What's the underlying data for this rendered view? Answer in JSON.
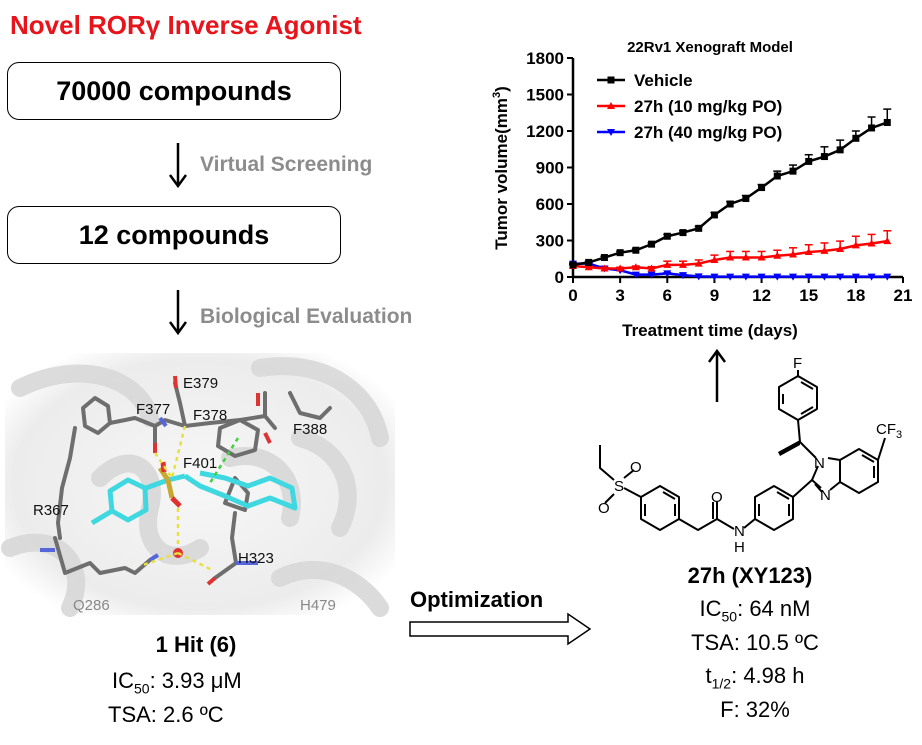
{
  "title": "Novel RORγ Inverse Agonist",
  "workflow": {
    "box1": "70000 compounds",
    "step1": "Virtual Screening",
    "box2": "12 compounds",
    "step2": "Biological Evaluation"
  },
  "binding_site": {
    "residues": [
      "E379",
      "F377",
      "F378",
      "F388",
      "F401",
      "R367",
      "H323",
      "Q286",
      "H479"
    ]
  },
  "hit": {
    "name": "1 Hit (6)",
    "ic50_label": "IC",
    "ic50_sub": "50",
    "ic50_value": ": 3.93 μM",
    "tsa": "TSA: 2.6 ºC"
  },
  "optimization_label": "Optimization",
  "lead": {
    "name": "27h (XY123)",
    "ic50_label": "IC",
    "ic50_sub": "50",
    "ic50_value": ":  64 nM",
    "tsa": "TSA: 10.5 ºC",
    "t_label": "t",
    "t_sub": "1/2",
    "t_value": ":  4.98 h",
    "f": "F:  32%"
  },
  "molecule": {
    "atoms": {
      "F": "F",
      "CF3": "CF",
      "CF3_sub": "3",
      "N1": "N",
      "N3": "N",
      "S": "S",
      "O1": "O",
      "O2": "O",
      "O3": "O",
      "NH_N": "N",
      "NH_H": "H"
    }
  },
  "chart_data": {
    "type": "line",
    "title": "22Rv1 Xenograft Model",
    "xlabel": "Treatment time (days)",
    "ylabel": "Tumor volume(mm",
    "ylabel_sup": "3",
    "ylabel_end": ")",
    "xlim": [
      0,
      21
    ],
    "ylim": [
      0,
      1800
    ],
    "xticks": [
      0,
      3,
      6,
      9,
      12,
      15,
      18,
      21
    ],
    "yticks": [
      0,
      300,
      600,
      900,
      1200,
      1500,
      1800
    ],
    "grid": false,
    "legend_position": "top-left",
    "x": [
      0,
      1,
      2,
      3,
      4,
      5,
      6,
      7,
      8,
      9,
      10,
      11,
      12,
      13,
      14,
      15,
      16,
      17,
      18,
      19,
      20
    ],
    "series": [
      {
        "name": "Vehicle",
        "color": "#000000",
        "marker": "square",
        "values": [
          100,
          120,
          160,
          200,
          220,
          270,
          335,
          365,
          400,
          510,
          600,
          645,
          735,
          830,
          870,
          950,
          990,
          1045,
          1140,
          1225,
          1270
        ],
        "error": [
          5,
          5,
          10,
          10,
          10,
          10,
          15,
          15,
          15,
          20,
          20,
          25,
          25,
          40,
          50,
          55,
          80,
          80,
          60,
          90,
          110
        ]
      },
      {
        "name": "27h (10 mg/kg PO)",
        "color": "#ff0000",
        "marker": "triangle-up",
        "values": [
          90,
          80,
          70,
          70,
          80,
          70,
          100,
          100,
          110,
          140,
          160,
          160,
          160,
          175,
          185,
          205,
          215,
          230,
          260,
          275,
          295
        ],
        "error": [
          10,
          10,
          10,
          10,
          10,
          15,
          30,
          30,
          30,
          40,
          50,
          50,
          50,
          45,
          55,
          60,
          65,
          65,
          75,
          75,
          85
        ]
      },
      {
        "name": "27h (40 mg/kg PO)",
        "color": "#0000ff",
        "marker": "triangle-down",
        "values": [
          110,
          110,
          70,
          55,
          20,
          20,
          30,
          15,
          5,
          3,
          3,
          3,
          3,
          3,
          3,
          3,
          3,
          3,
          3,
          3,
          3
        ],
        "error": [
          5,
          5,
          5,
          5,
          5,
          5,
          5,
          5,
          2,
          1,
          1,
          1,
          1,
          1,
          1,
          1,
          1,
          1,
          1,
          1,
          1
        ]
      }
    ]
  }
}
